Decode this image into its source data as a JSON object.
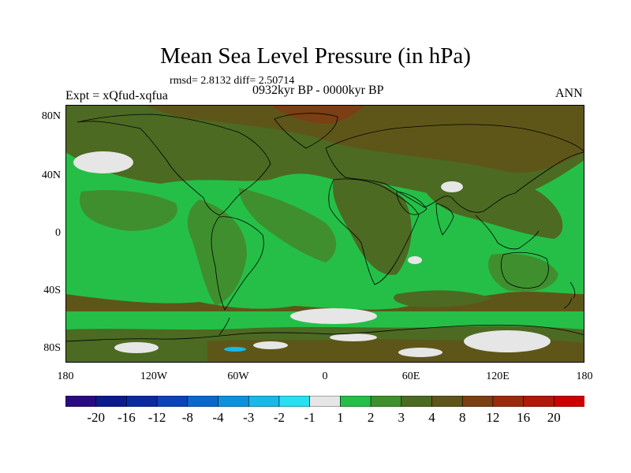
{
  "header": {
    "title": "Mean Sea Level Pressure (in hPa)",
    "stats": "rmsd= 2.8132 diff= 2.50714",
    "experiment": "Expt = xQfud-xqfua",
    "period": "0932kyr BP - 0000kyr BP",
    "season": "ANN"
  },
  "axes": {
    "y_ticks": [
      "80N",
      "40N",
      "0",
      "40S",
      "80S"
    ],
    "x_ticks": [
      "180",
      "120W",
      "60W",
      "0",
      "60E",
      "120E",
      "180"
    ]
  },
  "colorbar": {
    "labels": [
      "-20",
      "-16",
      "-12",
      "-8",
      "-4",
      "-3",
      "-2",
      "-1",
      "1",
      "2",
      "3",
      "4",
      "8",
      "12",
      "16",
      "20"
    ],
    "colors": [
      "#2a0a80",
      "#0d1a8c",
      "#0a2aa0",
      "#0a44b8",
      "#0a68cc",
      "#0c92dc",
      "#18b8e8",
      "#28e0f0",
      "#e6e6e6",
      "#25bf47",
      "#3f8f2e",
      "#4c6a22",
      "#5e5619",
      "#7a3f12",
      "#992b0c",
      "#b01808",
      "#cc0000"
    ]
  },
  "map_colors": {
    "land_outline": "#000000",
    "near_zero": "#e6e6e6"
  }
}
